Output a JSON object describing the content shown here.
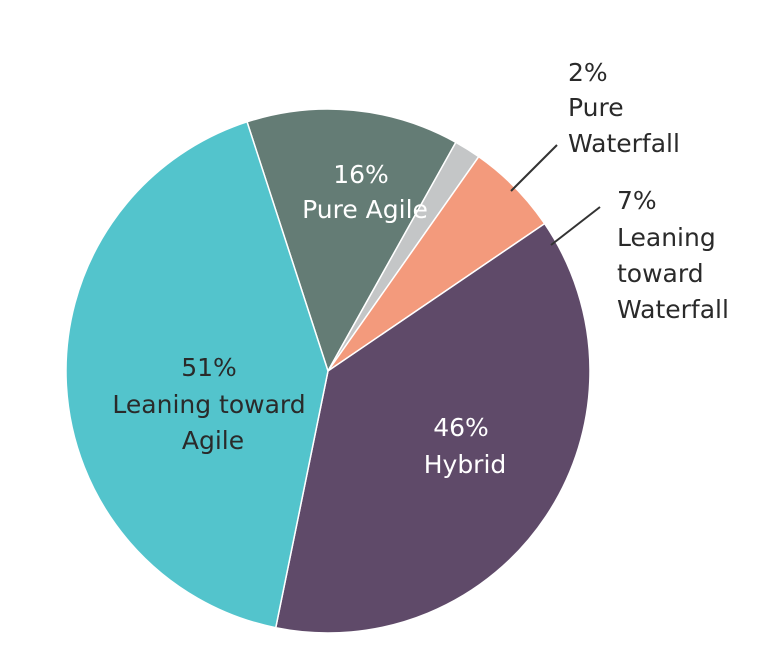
{
  "chart_data": {
    "type": "pie",
    "title": "",
    "slices": [
      {
        "key": "pure_agile",
        "label": "Pure Agile",
        "percent_label": "16%",
        "value": 16,
        "color": "#647c75"
      },
      {
        "key": "pure_waterfall",
        "label": "Pure Waterfall",
        "percent_label": "2%",
        "value": 2,
        "color": "#c4c6c7"
      },
      {
        "key": "leaning_waterfall",
        "label": "Leaning toward Waterfall",
        "percent_label": "7%",
        "value": 7,
        "color": "#f39a7c"
      },
      {
        "key": "hybrid",
        "label": "Hybrid",
        "percent_label": "46%",
        "value": 46,
        "color": "#5f4a69"
      },
      {
        "key": "leaning_agile",
        "label": "Leaning toward Agile",
        "percent_label": "51%",
        "value": 51,
        "color": "#53c4cc"
      }
    ],
    "labels": {
      "pure_agile": [
        "16%",
        "Pure Agile"
      ],
      "pure_waterfall": [
        "2%",
        "Pure",
        "Waterfall"
      ],
      "leaning_waterfall": [
        "7%",
        "Leaning",
        "toward",
        "Waterfall"
      ],
      "hybrid": [
        "46%",
        "Hybrid"
      ],
      "leaning_agile": [
        "51%",
        "Leaning toward",
        "Agile"
      ]
    }
  }
}
